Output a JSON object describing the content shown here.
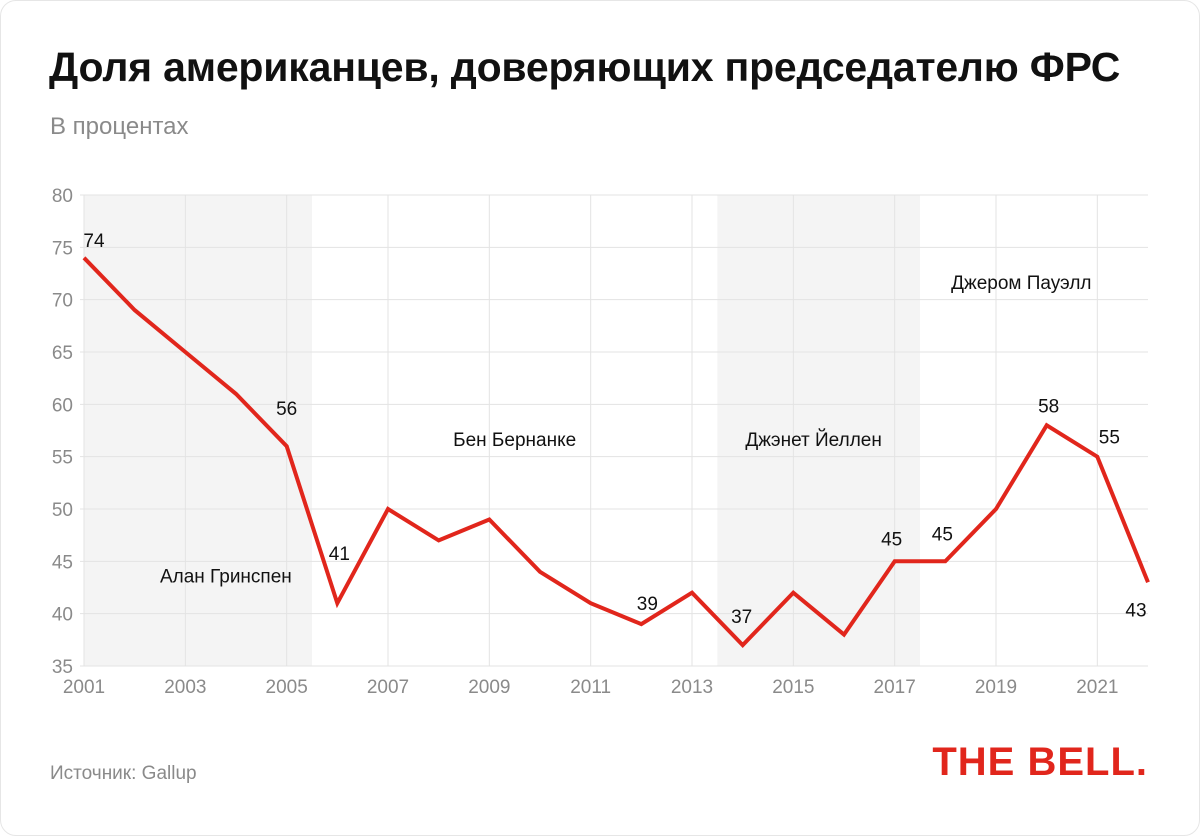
{
  "header": {
    "title": "Доля американцев, доверяющих председателю ФРС",
    "subtitle": "В процентах"
  },
  "footer": {
    "source": "Источник: Gallup",
    "logo": "THE BELL."
  },
  "colors": {
    "line": "#e1261c",
    "shade": "#f4f4f4",
    "grid": "#e3e3e3",
    "axis_text": "#8a8a8a"
  },
  "chart_data": {
    "type": "line",
    "title": "Доля американцев, доверяющих председателю ФРС",
    "subtitle": "В процентах",
    "xlabel": "",
    "ylabel": "",
    "xlim": [
      2001,
      2022
    ],
    "ylim": [
      35,
      80
    ],
    "yticks": [
      35,
      40,
      45,
      50,
      55,
      60,
      65,
      70,
      75,
      80
    ],
    "xticks": [
      2001,
      2003,
      2005,
      2007,
      2009,
      2011,
      2013,
      2015,
      2017,
      2019,
      2021
    ],
    "grid": true,
    "series": [
      {
        "x": [
          2001,
          2002,
          2003,
          2004,
          2005,
          2006,
          2007,
          2008,
          2009,
          2010,
          2011,
          2012,
          2013,
          2014,
          2015,
          2016,
          2017,
          2018,
          2019,
          2020,
          2021,
          2022
        ],
        "values": [
          74,
          69,
          65,
          61,
          56,
          41,
          50,
          47,
          49,
          44,
          41,
          39,
          42,
          37,
          42,
          38,
          45,
          45,
          50,
          58,
          55,
          43
        ],
        "color": "#e1261c"
      }
    ],
    "data_labels": [
      {
        "x": 2001,
        "value": 74,
        "text": "74"
      },
      {
        "x": 2005,
        "value": 56,
        "text": "56"
      },
      {
        "x": 2006,
        "value": 41,
        "text": "41"
      },
      {
        "x": 2012,
        "value": 39,
        "text": "39"
      },
      {
        "x": 2014,
        "value": 37,
        "text": "37"
      },
      {
        "x": 2017,
        "value": 45,
        "text": "45"
      },
      {
        "x": 2018,
        "value": 45,
        "text": "45"
      },
      {
        "x": 2020,
        "value": 58,
        "text": "58"
      },
      {
        "x": 2021,
        "value": 55,
        "text": "55"
      },
      {
        "x": 2022,
        "value": 43,
        "text": "43"
      }
    ],
    "periods": [
      {
        "label": "Алан Гринспен",
        "from": 2001,
        "to": 2005.5,
        "shaded": true,
        "label_x": 2003.8,
        "label_y": 43
      },
      {
        "label": "Бен Бернанке",
        "from": 2005.5,
        "to": 2013.5,
        "shaded": false,
        "label_x": 2009.5,
        "label_y": 56
      },
      {
        "label": "Джэнет Йеллен",
        "from": 2013.5,
        "to": 2017.5,
        "shaded": true,
        "label_x": 2015.4,
        "label_y": 56
      },
      {
        "label": "Джером Пауэлл",
        "from": 2017.5,
        "to": 2022,
        "shaded": false,
        "label_x": 2019.5,
        "label_y": 71
      }
    ]
  }
}
